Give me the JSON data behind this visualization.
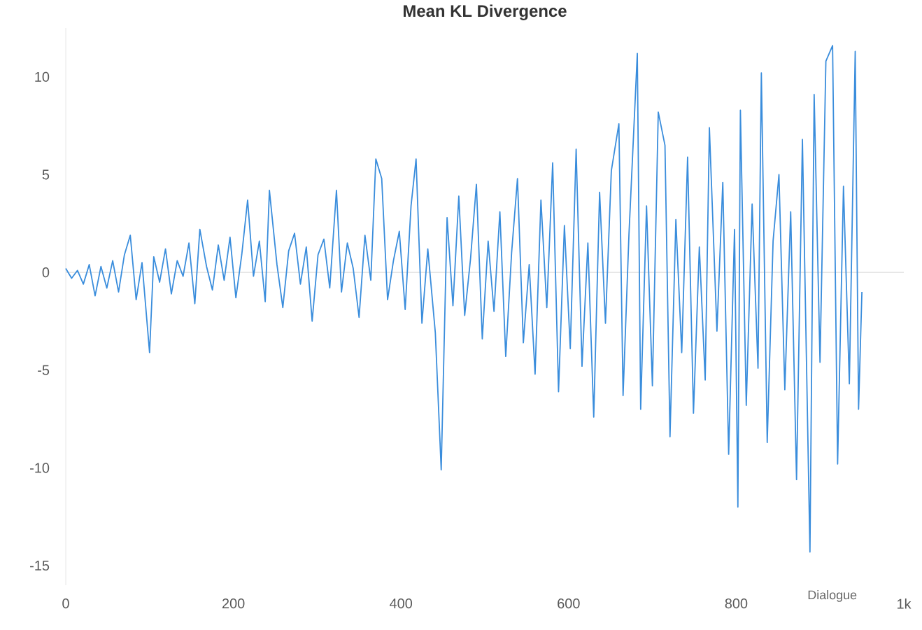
{
  "chart_data": {
    "type": "line",
    "title": "Mean KL Divergence",
    "x": [
      0,
      7,
      14,
      21,
      28,
      35,
      42,
      49,
      56,
      63,
      70,
      77,
      84,
      91,
      100,
      105,
      112,
      119,
      126,
      133,
      140,
      147,
      154,
      160,
      168,
      175,
      182,
      189,
      196,
      203,
      210,
      217,
      224,
      231,
      238,
      243,
      252,
      259,
      266,
      273,
      280,
      287,
      294,
      301,
      308,
      315,
      323,
      329,
      336,
      343,
      350,
      357,
      364,
      370,
      377,
      384,
      391,
      398,
      405,
      412,
      418,
      425,
      432,
      441,
      448,
      455,
      462,
      469,
      476,
      483,
      490,
      497,
      504,
      511,
      518,
      525,
      532,
      539,
      546,
      553,
      560,
      567,
      574,
      581,
      588,
      595,
      602,
      609,
      616,
      623,
      630,
      637,
      644,
      651,
      660,
      665,
      672,
      682,
      686,
      693,
      700,
      707,
      715,
      721,
      728,
      735,
      742,
      749,
      756,
      763,
      768,
      777,
      784,
      791,
      798,
      802,
      805,
      812,
      819,
      826,
      830,
      837,
      844,
      851,
      858,
      865,
      872,
      879,
      888,
      893,
      900,
      907,
      915,
      921,
      928,
      935,
      942,
      946,
      950
    ],
    "series": [
      {
        "name": "Dialogue",
        "color": "#3a8ddc",
        "values": [
          0.2,
          -0.3,
          0.1,
          -0.6,
          0.4,
          -1.2,
          0.3,
          -0.8,
          0.6,
          -1.0,
          0.9,
          1.9,
          -1.4,
          0.5,
          -4.1,
          0.8,
          -0.5,
          1.2,
          -1.1,
          0.6,
          -0.2,
          1.5,
          -1.6,
          2.2,
          0.3,
          -0.9,
          1.4,
          -0.4,
          1.8,
          -1.3,
          0.9,
          3.7,
          -0.2,
          1.6,
          -1.5,
          4.2,
          0.4,
          -1.8,
          1.1,
          2.0,
          -0.6,
          1.3,
          -2.5,
          0.9,
          1.7,
          -0.8,
          4.2,
          -1.0,
          1.5,
          0.2,
          -2.3,
          1.9,
          -0.4,
          5.8,
          4.8,
          -1.4,
          0.6,
          2.1,
          -1.9,
          3.4,
          5.8,
          -2.6,
          1.2,
          -3.1,
          -10.1,
          2.8,
          -1.7,
          3.9,
          -2.2,
          0.7,
          4.5,
          -3.4,
          1.6,
          -2.0,
          3.1,
          -4.3,
          1.0,
          4.8,
          -3.6,
          0.4,
          -5.2,
          3.7,
          -1.8,
          5.6,
          -6.1,
          2.4,
          -3.9,
          6.3,
          -4.8,
          1.5,
          -7.4,
          4.1,
          -2.6,
          5.2,
          7.6,
          -6.3,
          1.9,
          11.2,
          -7.0,
          3.4,
          -5.8,
          8.2,
          6.5,
          -8.4,
          2.7,
          -4.1,
          5.9,
          -7.2,
          1.3,
          -5.5,
          7.4,
          -3.0,
          4.6,
          -9.3,
          2.2,
          -12.0,
          8.3,
          -6.8,
          3.5,
          -4.9,
          10.2,
          -8.7,
          1.6,
          5.0,
          -6.0,
          3.1,
          -10.6,
          6.8,
          -14.3,
          9.1,
          -4.6,
          10.8,
          11.6,
          -9.8,
          4.4,
          -5.7,
          11.3,
          -7.0,
          -1.0
        ]
      }
    ],
    "xlim": [
      0,
      1000
    ],
    "ylim": [
      -16,
      12.5
    ],
    "xticks": [
      0,
      200,
      400,
      600,
      800,
      {
        "value": 1000,
        "label": "1k"
      }
    ],
    "yticks": [
      -15,
      -10,
      -5,
      0,
      5,
      10
    ],
    "ref_lines": [
      {
        "axis": "y",
        "value": 0,
        "color": "#dddddd"
      }
    ],
    "grid": false
  }
}
